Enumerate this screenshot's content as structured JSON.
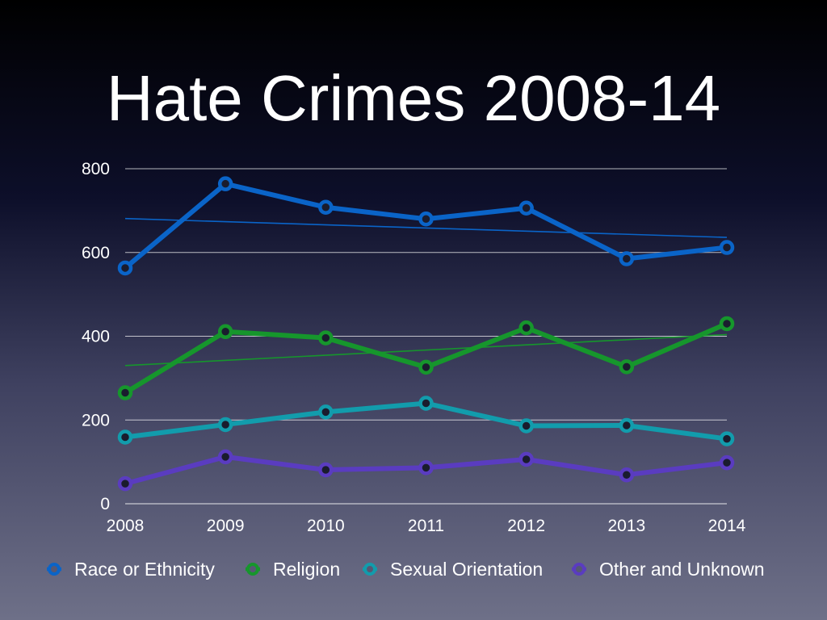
{
  "slide": {
    "title": "Hate Crimes 2008-14"
  },
  "chart_data": {
    "type": "line",
    "title": "Hate Crimes 2008-14",
    "x": [
      "2008",
      "2009",
      "2010",
      "2011",
      "2012",
      "2013",
      "2014"
    ],
    "ylim": [
      0,
      800
    ],
    "yticks": [
      0,
      200,
      400,
      600,
      800
    ],
    "grid": true,
    "legend": "bottom",
    "series": [
      {
        "name": "Race or Ethnicity",
        "color": "#0a64c8",
        "values": [
          563,
          764,
          708,
          680,
          706,
          585,
          612
        ],
        "trendline": [
          681,
          636
        ]
      },
      {
        "name": "Religion",
        "color": "#16962c",
        "values": [
          265,
          411,
          396,
          326,
          420,
          327,
          430
        ],
        "trendline": [
          330,
          404
        ]
      },
      {
        "name": "Sexual Orientation",
        "color": "#129cac",
        "values": [
          159,
          189,
          219,
          240,
          186,
          187,
          155
        ],
        "trendline": null
      },
      {
        "name": "Other and Unknown",
        "color": "#5a3cc0",
        "values": [
          48,
          112,
          81,
          86,
          106,
          69,
          98
        ],
        "trendline": null
      }
    ]
  }
}
